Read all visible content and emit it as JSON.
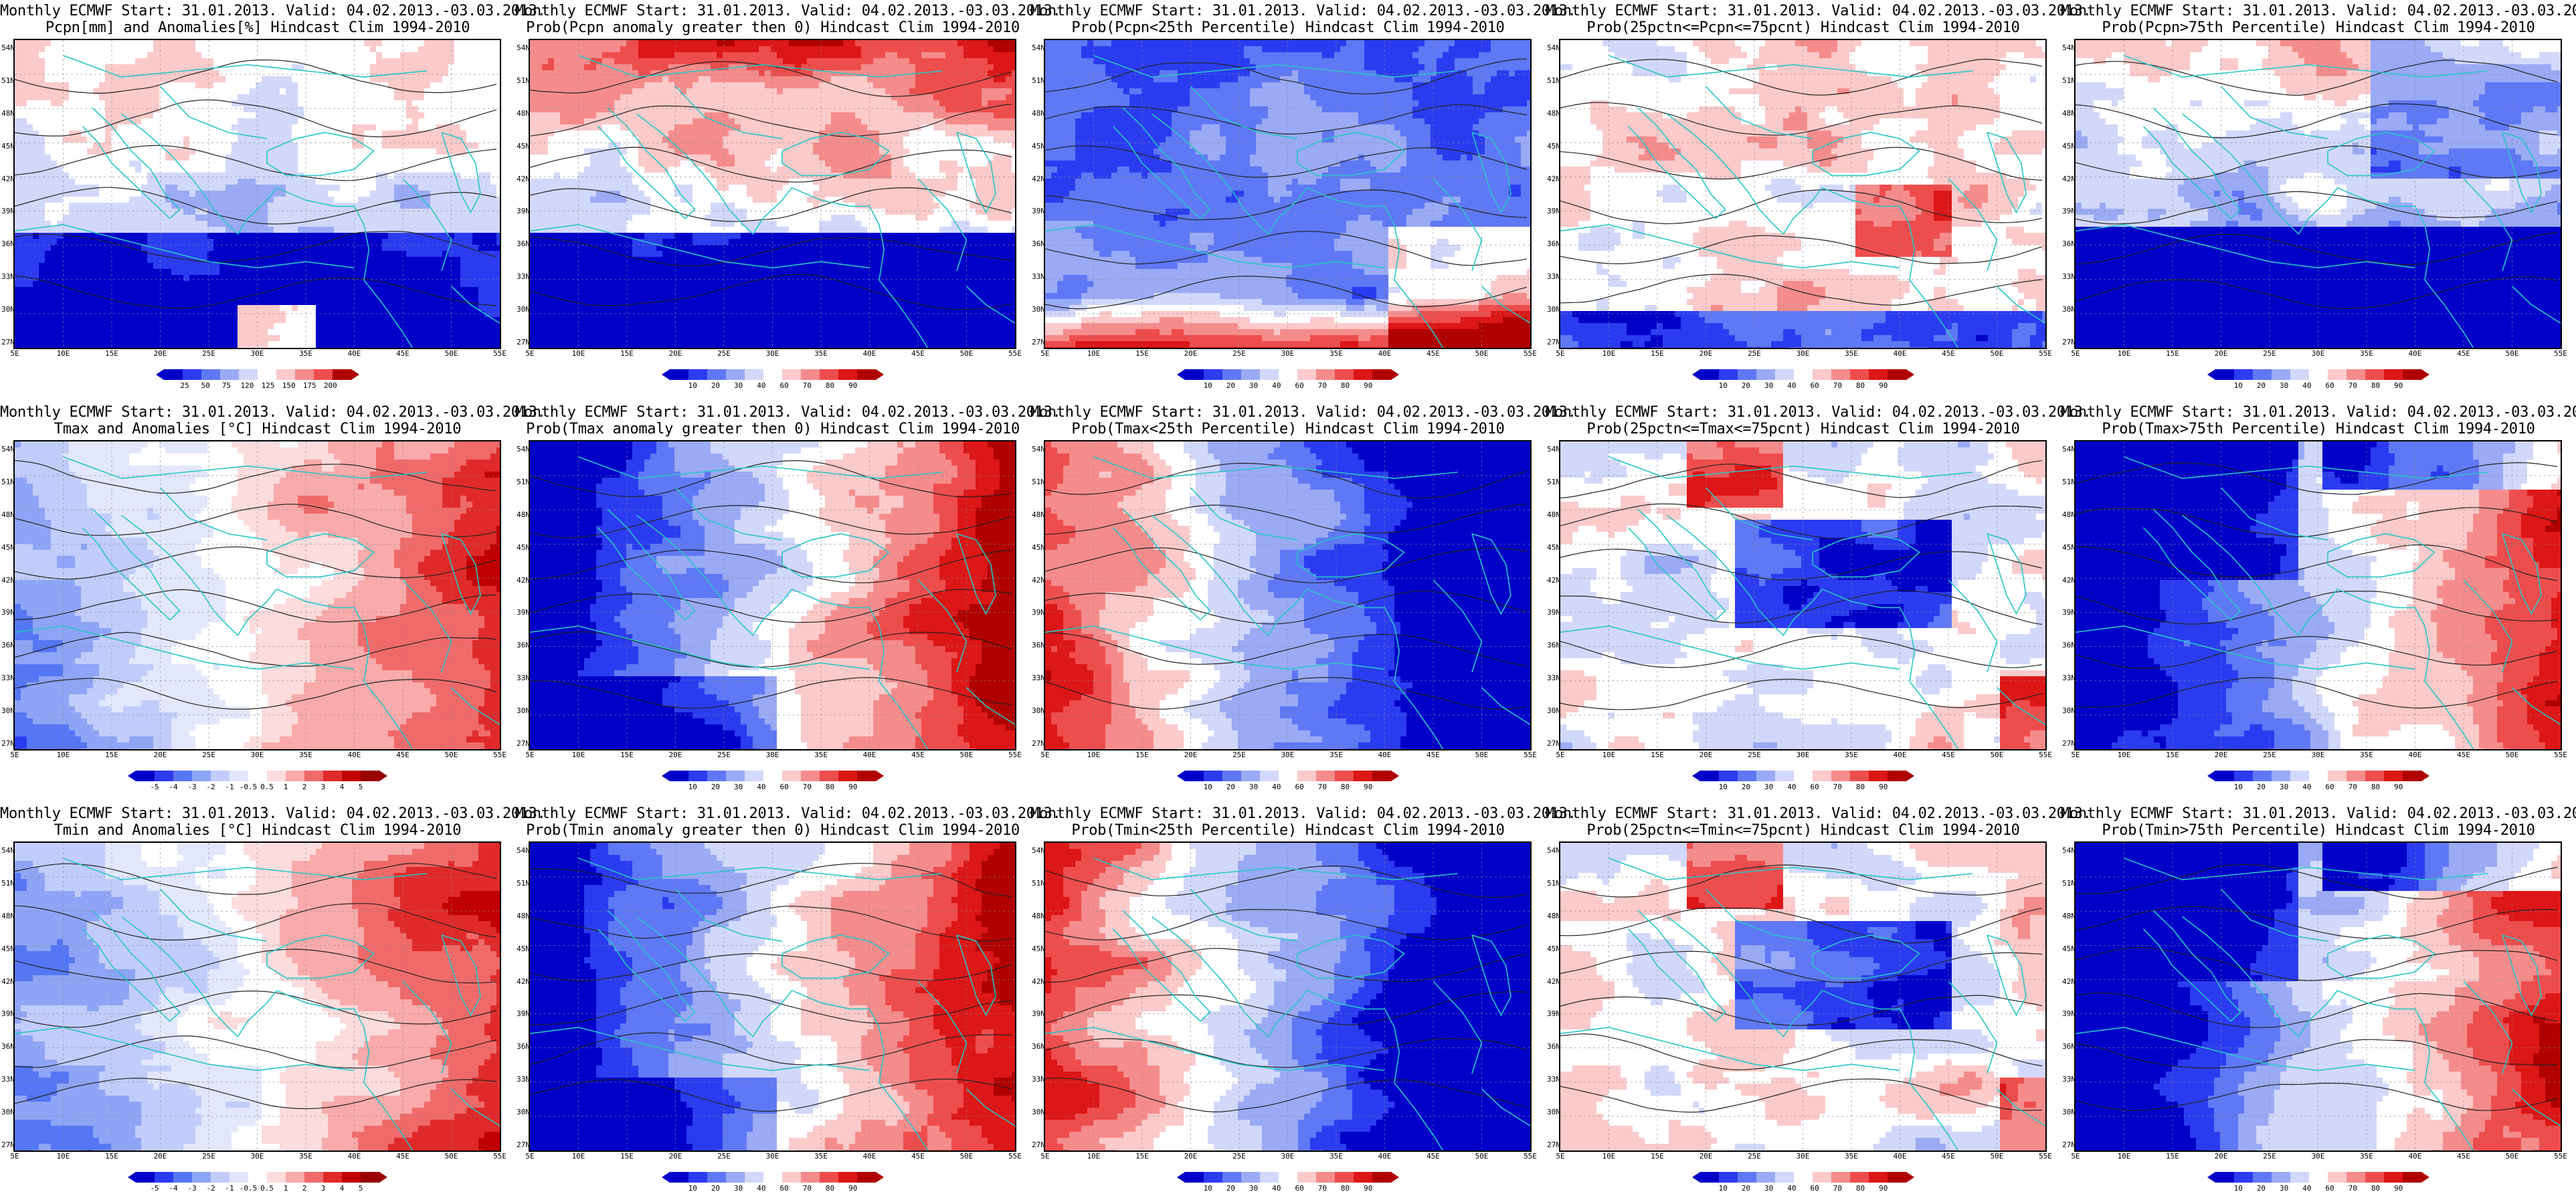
{
  "common_title": "Monthly ECMWF Start: 31.01.2013. Valid: 04.02.2013.-03.03.2013.",
  "lat_labels": [
    "54N",
    "51N",
    "48N",
    "45N",
    "42N",
    "39N",
    "36N",
    "33N",
    "30N",
    "27N"
  ],
  "lon_labels": [
    "5E",
    "10E",
    "15E",
    "20E",
    "25E",
    "30E",
    "35E",
    "40E",
    "45E",
    "50E",
    "55E"
  ],
  "colors": {
    "coast": "#26c6c6",
    "contour": "#222222",
    "deep_blue": "#0a0acc",
    "deep_red": "#bb0000"
  },
  "panels": [
    {
      "subtitle": "Pcpn[mm] and Anomalies[%] Hindcast Clim 1994-2010",
      "scale": "pcpn",
      "pattern": "pcpn_anom",
      "ticks": [
        "25",
        "50",
        "75",
        "120",
        "125",
        "150",
        "175",
        "200"
      ]
    },
    {
      "subtitle": "Prob(Pcpn anomaly greater then 0) Hindcast Clim 1994-2010",
      "scale": "prob",
      "pattern": "pcpn_pos",
      "ticks": [
        "10",
        "20",
        "30",
        "40",
        "60",
        "70",
        "80",
        "90"
      ]
    },
    {
      "subtitle": "Prob(Pcpn<25th Percentile) Hindcast Clim 1994-2010",
      "scale": "prob",
      "pattern": "pcpn_low",
      "ticks": [
        "10",
        "20",
        "30",
        "40",
        "60",
        "70",
        "80",
        "90"
      ]
    },
    {
      "subtitle": "Prob(25pctn<=Pcpn<=75pcnt) Hindcast Clim 1994-2010",
      "scale": "prob",
      "pattern": "pcpn_mid",
      "ticks": [
        "10",
        "20",
        "30",
        "40",
        "60",
        "70",
        "80",
        "90"
      ]
    },
    {
      "subtitle": "Prob(Pcpn>75th Percentile) Hindcast Clim 1994-2010",
      "scale": "prob",
      "pattern": "pcpn_high",
      "ticks": [
        "10",
        "20",
        "30",
        "40",
        "60",
        "70",
        "80",
        "90"
      ]
    },
    {
      "subtitle": "Tmax and Anomalies [°C] Hindcast Clim 1994-2010",
      "scale": "temp",
      "pattern": "t_anom",
      "ticks": [
        "-5",
        "-4",
        "-3",
        "-2",
        "-1",
        "-0.5",
        "0.5",
        "1",
        "2",
        "3",
        "4",
        "5"
      ]
    },
    {
      "subtitle": "Prob(Tmax anomaly greater then 0) Hindcast Clim 1994-2010",
      "scale": "prob",
      "pattern": "t_pos",
      "ticks": [
        "10",
        "20",
        "30",
        "40",
        "60",
        "70",
        "80",
        "90"
      ]
    },
    {
      "subtitle": "Prob(Tmax<25th Percentile) Hindcast Clim 1994-2010",
      "scale": "prob",
      "pattern": "t_low",
      "ticks": [
        "10",
        "20",
        "30",
        "40",
        "60",
        "70",
        "80",
        "90"
      ]
    },
    {
      "subtitle": "Prob(25pctn<=Tmax<=75pcnt) Hindcast Clim 1994-2010",
      "scale": "prob",
      "pattern": "t_mid",
      "ticks": [
        "10",
        "20",
        "30",
        "40",
        "60",
        "70",
        "80",
        "90"
      ]
    },
    {
      "subtitle": "Prob(Tmax>75th Percentile) Hindcast Clim 1994-2010",
      "scale": "prob",
      "pattern": "t_high",
      "ticks": [
        "10",
        "20",
        "30",
        "40",
        "60",
        "70",
        "80",
        "90"
      ]
    },
    {
      "subtitle": "Tmin and Anomalies [°C] Hindcast Clim 1994-2010",
      "scale": "temp",
      "pattern": "t_anom",
      "ticks": [
        "-5",
        "-4",
        "-3",
        "-2",
        "-1",
        "-0.5",
        "0.5",
        "1",
        "2",
        "3",
        "4",
        "5"
      ]
    },
    {
      "subtitle": "Prob(Tmin anomaly greater then 0) Hindcast Clim 1994-2010",
      "scale": "prob",
      "pattern": "t_pos",
      "ticks": [
        "10",
        "20",
        "30",
        "40",
        "60",
        "70",
        "80",
        "90"
      ]
    },
    {
      "subtitle": "Prob(Tmin<25th Percentile) Hindcast Clim 1994-2010",
      "scale": "prob",
      "pattern": "t_low",
      "ticks": [
        "10",
        "20",
        "30",
        "40",
        "60",
        "70",
        "80",
        "90"
      ]
    },
    {
      "subtitle": "Prob(25pctn<=Tmin<=75pcnt) Hindcast Clim 1994-2010",
      "scale": "prob",
      "pattern": "t_mid",
      "ticks": [
        "10",
        "20",
        "30",
        "40",
        "60",
        "70",
        "80",
        "90"
      ]
    },
    {
      "subtitle": "Prob(Tmin>75th Percentile) Hindcast Clim 1994-2010",
      "scale": "prob",
      "pattern": "t_high",
      "ticks": [
        "10",
        "20",
        "30",
        "40",
        "60",
        "70",
        "80",
        "90"
      ]
    }
  ]
}
